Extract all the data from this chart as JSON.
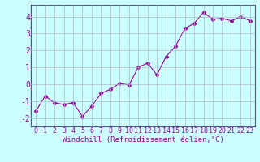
{
  "x": [
    0,
    1,
    2,
    3,
    4,
    5,
    6,
    7,
    8,
    9,
    10,
    11,
    12,
    13,
    14,
    15,
    16,
    17,
    18,
    19,
    20,
    21,
    22,
    23
  ],
  "y": [
    -1.6,
    -0.7,
    -1.1,
    -1.2,
    -1.1,
    -1.9,
    -1.3,
    -0.55,
    -0.3,
    0.05,
    -0.05,
    1.0,
    1.25,
    0.55,
    1.65,
    2.25,
    3.3,
    3.6,
    4.25,
    3.85,
    3.9,
    3.75,
    4.0,
    3.75
  ],
  "line_color": "#990099",
  "marker": "D",
  "markersize": 2.5,
  "linewidth": 0.8,
  "xlabel": "Windchill (Refroidissement éolien,°C)",
  "xlim": [
    -0.5,
    23.5
  ],
  "ylim": [
    -2.5,
    4.7
  ],
  "yticks": [
    -2,
    -1,
    0,
    1,
    2,
    3,
    4
  ],
  "xticks": [
    0,
    1,
    2,
    3,
    4,
    5,
    6,
    7,
    8,
    9,
    10,
    11,
    12,
    13,
    14,
    15,
    16,
    17,
    18,
    19,
    20,
    21,
    22,
    23
  ],
  "background_color": "#ccffff",
  "grid_color": "#aabbcc",
  "tick_label_color": "#990099",
  "xlabel_color": "#990099",
  "xlabel_fontsize": 6.5,
  "tick_fontsize": 6,
  "ytick_fontsize": 7
}
